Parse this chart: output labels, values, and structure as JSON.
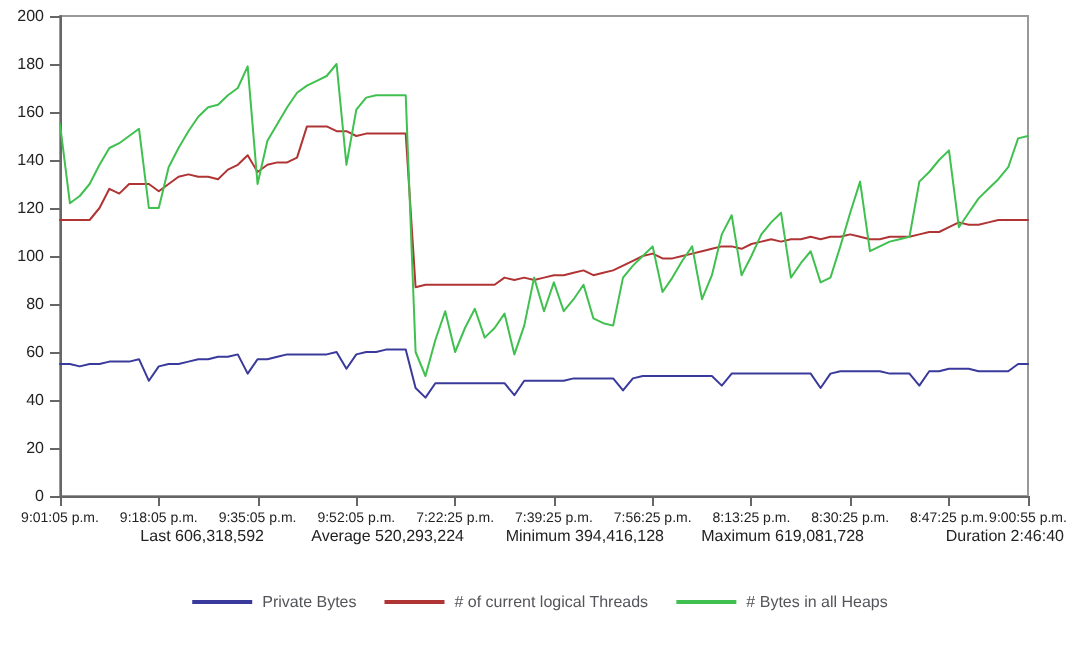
{
  "chart_data": {
    "type": "line",
    "categories": [
      "9:01:05 p.m.",
      null,
      null,
      null,
      null,
      null,
      null,
      null,
      null,
      null,
      "9:18:05 p.m.",
      null,
      null,
      null,
      null,
      null,
      null,
      null,
      null,
      null,
      "9:35:05 p.m.",
      null,
      null,
      null,
      null,
      null,
      null,
      null,
      null,
      null,
      "9:52:05 p.m.",
      null,
      null,
      null,
      null,
      null,
      null,
      null,
      null,
      null,
      "7:22:25 p.m.",
      null,
      null,
      null,
      null,
      null,
      null,
      null,
      null,
      null,
      "7:39:25 p.m.",
      null,
      null,
      null,
      null,
      null,
      null,
      null,
      null,
      null,
      "7:56:25 p.m.",
      null,
      null,
      null,
      null,
      null,
      null,
      null,
      null,
      null,
      "8:13:25 p.m.",
      null,
      null,
      null,
      null,
      null,
      null,
      null,
      null,
      null,
      "8:30:25 p.m.",
      null,
      null,
      null,
      null,
      null,
      null,
      null,
      null,
      null,
      "8:47:25 p.m.",
      null,
      null,
      null,
      null,
      null,
      null,
      null,
      "9:00:55 p.m."
    ],
    "series": [
      {
        "name": "Private Bytes",
        "color": "#3a3a9c",
        "values": [
          55,
          55,
          54,
          55,
          55,
          56,
          56,
          56,
          57,
          48,
          54,
          55,
          55,
          56,
          57,
          57,
          58,
          58,
          59,
          51,
          57,
          57,
          58,
          59,
          59,
          59,
          59,
          59,
          60,
          53,
          59,
          60,
          60,
          61,
          61,
          61,
          45,
          41,
          47,
          47,
          47,
          47,
          47,
          47,
          47,
          47,
          42,
          48,
          48,
          48,
          48,
          48,
          49,
          49,
          49,
          49,
          49,
          44,
          49,
          50,
          50,
          50,
          50,
          50,
          50,
          50,
          50,
          46,
          51,
          51,
          51,
          51,
          51,
          51,
          51,
          51,
          51,
          45,
          51,
          52,
          52,
          52,
          52,
          52,
          51,
          51,
          51,
          46,
          52,
          52,
          53,
          53,
          53,
          52,
          52,
          52,
          52,
          55,
          55
        ]
      },
      {
        "name": "# of current logical Threads",
        "color": "#b03434",
        "values": [
          115,
          115,
          115,
          115,
          120,
          128,
          126,
          130,
          130,
          130,
          127,
          130,
          133,
          134,
          133,
          133,
          132,
          136,
          138,
          142,
          135,
          138,
          139,
          139,
          141,
          154,
          154,
          154,
          152,
          152,
          150,
          151,
          151,
          151,
          151,
          151,
          87,
          88,
          88,
          88,
          88,
          88,
          88,
          88,
          88,
          91,
          90,
          91,
          90,
          91,
          92,
          92,
          93,
          94,
          92,
          93,
          94,
          96,
          98,
          100,
          101,
          99,
          99,
          100,
          101,
          102,
          103,
          104,
          104,
          103,
          105,
          106,
          107,
          106,
          107,
          107,
          108,
          107,
          108,
          108,
          109,
          108,
          107,
          107,
          108,
          108,
          108,
          109,
          110,
          110,
          112,
          114,
          113,
          113,
          114,
          115,
          115,
          115,
          115
        ]
      },
      {
        "name": "# Bytes in all Heaps",
        "color": "#40c050",
        "values": [
          155,
          122,
          125,
          130,
          138,
          145,
          147,
          150,
          153,
          120,
          120,
          137,
          145,
          152,
          158,
          162,
          163,
          167,
          170,
          179,
          130,
          148,
          155,
          162,
          168,
          171,
          173,
          175,
          180,
          138,
          161,
          166,
          167,
          167,
          167,
          167,
          60,
          50,
          65,
          77,
          60,
          70,
          78,
          66,
          70,
          76,
          59,
          71,
          91,
          77,
          89,
          77,
          82,
          88,
          74,
          72,
          71,
          91,
          96,
          100,
          104,
          85,
          91,
          98,
          104,
          82,
          92,
          109,
          117,
          92,
          100,
          109,
          114,
          118,
          91,
          97,
          102,
          89,
          91,
          104,
          118,
          131,
          102,
          104,
          106,
          107,
          108,
          131,
          135,
          140,
          144,
          112,
          118,
          124,
          128,
          132,
          137,
          149,
          150
        ]
      }
    ],
    "ylim": [
      0,
      200
    ],
    "yticks": [
      0,
      20,
      40,
      60,
      80,
      100,
      120,
      140,
      160,
      180,
      200
    ],
    "annotations": [
      "Last 606,318,592",
      "Average 520,293,224",
      "Minimum 394,416,128",
      "Maximum 619,081,728",
      "Duration 2:46:40"
    ],
    "grid": false,
    "legend": "bottom",
    "marker": "none",
    "line_style": "solid"
  }
}
